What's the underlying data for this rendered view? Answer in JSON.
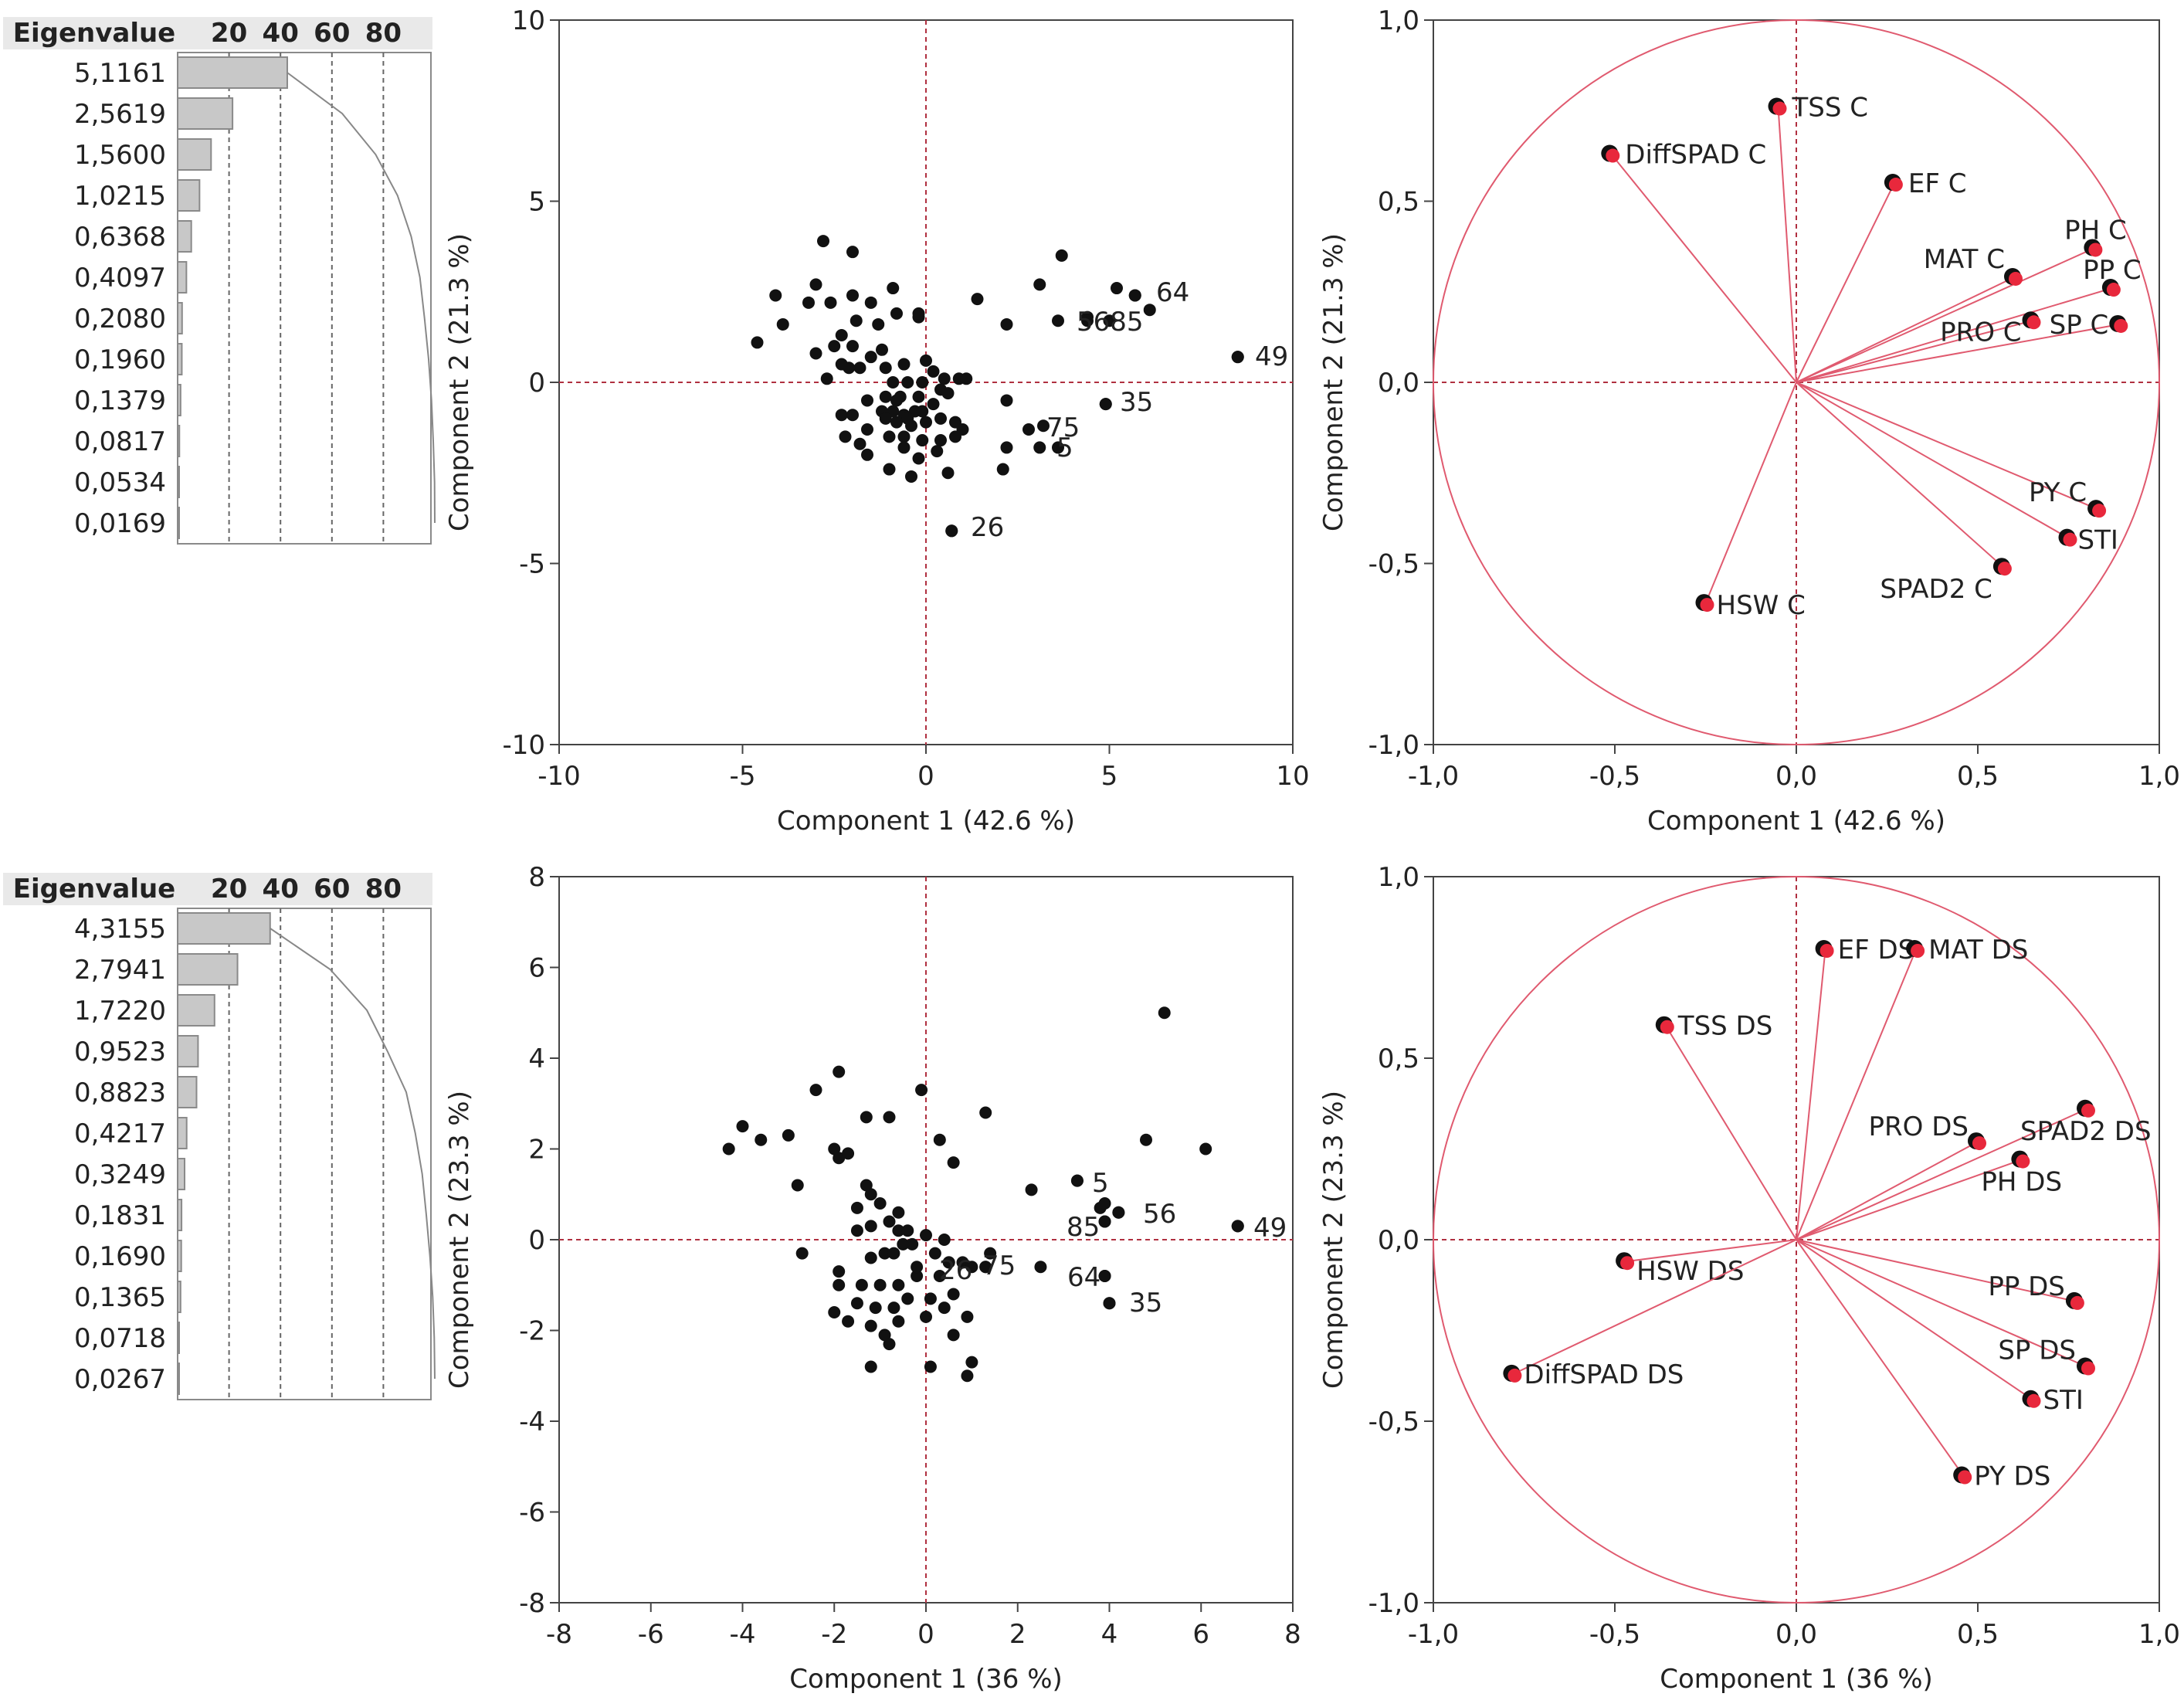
{
  "chart_data": [
    {
      "type": "bar",
      "panel": "eigenvalues-top",
      "title": "Eigenvalue",
      "percent_axis_ticks": [
        "20",
        "40",
        "60",
        "80"
      ],
      "values": [
        5.1161,
        2.5619,
        1.56,
        1.0215,
        0.6368,
        0.4097,
        0.208,
        0.196,
        0.1379,
        0.0817,
        0.0534,
        0.0169
      ],
      "labels": [
        "5,1161",
        "2,5619",
        "1,5600",
        "1,0215",
        "0,6368",
        "0,4097",
        "0,2080",
        "0,1960",
        "0,1379",
        "0,0817",
        "0,0534",
        "0,0169"
      ],
      "cumulative_percent": [
        42.6,
        64.0,
        77.0,
        85.5,
        90.8,
        94.2,
        96.0,
        97.6,
        98.7,
        99.4,
        99.9,
        100.0
      ]
    },
    {
      "type": "scatter",
      "panel": "scores-top",
      "xlabel": "Component 1 (42.6 %)",
      "ylabel": "Component 2  (21.3 %)",
      "xlim": [
        -10,
        10
      ],
      "ylim": [
        -10,
        10
      ],
      "xticks": [
        -10,
        -5,
        0,
        5,
        10
      ],
      "yticks": [
        -10,
        -5,
        0,
        5,
        10
      ],
      "xtick_labels": [
        "-10",
        "-5",
        "0",
        "5",
        "10"
      ],
      "ytick_labels": [
        "-10",
        "-5",
        "0",
        "5",
        "10"
      ],
      "points": [
        [
          -2.8,
          3.9
        ],
        [
          -2.0,
          3.6
        ],
        [
          -3.0,
          2.7
        ],
        [
          -4.1,
          2.4
        ],
        [
          -3.2,
          2.2
        ],
        [
          -2.6,
          2.2
        ],
        [
          -3.9,
          1.6
        ],
        [
          -2.0,
          2.4
        ],
        [
          -1.5,
          2.2
        ],
        [
          -1.3,
          1.6
        ],
        [
          -2.3,
          1.3
        ],
        [
          -1.9,
          1.7
        ],
        [
          -2.5,
          1.0
        ],
        [
          -3.0,
          0.8
        ],
        [
          -2.0,
          1.0
        ],
        [
          -2.3,
          0.5
        ],
        [
          -1.5,
          0.7
        ],
        [
          -1.2,
          0.9
        ],
        [
          -1.8,
          0.4
        ],
        [
          -2.1,
          0.4
        ],
        [
          -1.1,
          0.4
        ],
        [
          -0.9,
          2.6
        ],
        [
          -0.2,
          1.8
        ],
        [
          -0.2,
          1.9
        ],
        [
          -0.8,
          1.9
        ],
        [
          1.4,
          2.3
        ],
        [
          2.2,
          1.6
        ],
        [
          3.1,
          2.7
        ],
        [
          3.7,
          3.5
        ],
        [
          3.6,
          1.7
        ],
        [
          4.4,
          1.8
        ],
        [
          5.2,
          2.6
        ],
        [
          5.7,
          2.4
        ],
        [
          6.1,
          2.0
        ],
        [
          0.0,
          0.6
        ],
        [
          -0.6,
          0.5
        ],
        [
          0.2,
          0.3
        ],
        [
          0.5,
          0.1
        ],
        [
          0.9,
          0.1
        ],
        [
          1.1,
          0.1
        ],
        [
          -0.9,
          0.0
        ],
        [
          -0.5,
          0.0
        ],
        [
          -0.1,
          0.0
        ],
        [
          -1.1,
          -0.4
        ],
        [
          -0.7,
          -0.4
        ],
        [
          -0.2,
          -0.4
        ],
        [
          0.4,
          -0.2
        ],
        [
          0.6,
          -0.3
        ],
        [
          -1.6,
          -0.5
        ],
        [
          -2.3,
          -0.9
        ],
        [
          -2.0,
          -0.9
        ],
        [
          -1.2,
          -0.8
        ],
        [
          -0.9,
          -0.8
        ],
        [
          -0.6,
          -0.9
        ],
        [
          -0.3,
          -0.8
        ],
        [
          -0.1,
          -0.8
        ],
        [
          -0.5,
          -1.0
        ],
        [
          -0.8,
          -1.1
        ],
        [
          -1.1,
          -1.0
        ],
        [
          -0.4,
          -1.2
        ],
        [
          0.0,
          -1.1
        ],
        [
          0.4,
          -1.0
        ],
        [
          0.8,
          -1.1
        ],
        [
          1.0,
          -1.3
        ],
        [
          0.8,
          -1.5
        ],
        [
          0.4,
          -1.6
        ],
        [
          -0.1,
          -1.6
        ],
        [
          -0.6,
          -1.5
        ],
        [
          -1.0,
          -1.5
        ],
        [
          -1.6,
          -1.3
        ],
        [
          -1.8,
          -1.7
        ],
        [
          -2.2,
          -1.5
        ],
        [
          -1.6,
          -2.0
        ],
        [
          -0.6,
          -1.8
        ],
        [
          -0.2,
          -2.1
        ],
        [
          0.3,
          -1.9
        ],
        [
          -1.0,
          -2.4
        ],
        [
          -0.4,
          -2.6
        ],
        [
          0.6,
          -2.5
        ],
        [
          2.2,
          -0.5
        ],
        [
          2.8,
          -1.3
        ],
        [
          2.2,
          -1.8
        ],
        [
          3.1,
          -1.8
        ],
        [
          2.1,
          -2.4
        ],
        [
          4.9,
          -0.6
        ],
        [
          8.5,
          0.7
        ],
        [
          0.7,
          -4.1
        ],
        [
          -4.6,
          1.1
        ],
        [
          -2.7,
          0.1
        ],
        [
          -0.8,
          -0.5
        ],
        [
          0.2,
          -0.6
        ]
      ],
      "labeled_points": [
        {
          "label": "64",
          "x": 5.7,
          "y": 2.4
        },
        {
          "label": "56",
          "x": 4.4,
          "y": 1.7
        },
        {
          "label": "85",
          "x": 5.0,
          "y": 1.7
        },
        {
          "label": "49",
          "x": 8.5,
          "y": 0.7
        },
        {
          "label": "35",
          "x": 4.9,
          "y": -0.6
        },
        {
          "label": "75",
          "x": 3.2,
          "y": -1.2
        },
        {
          "label": "5",
          "x": 3.6,
          "y": -1.8
        },
        {
          "label": "26",
          "x": 0.7,
          "y": -4.1
        }
      ],
      "label_texts": {
        "p49": "49",
        "p64": "64",
        "p5685": "5685",
        "p35": "35",
        "p75": "75",
        "p5": "5",
        "p26": "26"
      }
    },
    {
      "type": "scatter",
      "panel": "loadings-top",
      "xlabel": "Component 1  (42.6 %)",
      "ylabel": "Component 2  (21.3 %)",
      "xlim": [
        -1.0,
        1.0
      ],
      "ylim": [
        -1.0,
        1.0
      ],
      "xticks": [
        -1.0,
        -0.5,
        0.0,
        0.5,
        1.0
      ],
      "yticks": [
        -1.0,
        -0.5,
        0.0,
        0.5,
        1.0
      ],
      "xtick_labels": [
        "-1,0",
        "-0,5",
        "0,0",
        "0,5",
        "1,0"
      ],
      "ytick_labels": [
        "-1,0",
        "-0,5",
        "0,0",
        "0,5",
        "1,0"
      ],
      "vectors": [
        {
          "name": "TSS C",
          "x": -0.05,
          "y": 0.76
        },
        {
          "name": "DiffSPAD C",
          "x": -0.51,
          "y": 0.63
        },
        {
          "name": "EF C",
          "x": 0.27,
          "y": 0.55
        },
        {
          "name": "PH C",
          "x": 0.82,
          "y": 0.37
        },
        {
          "name": "MAT C",
          "x": 0.6,
          "y": 0.29
        },
        {
          "name": "PP C",
          "x": 0.87,
          "y": 0.26
        },
        {
          "name": "PRO C",
          "x": 0.65,
          "y": 0.17
        },
        {
          "name": "SP C",
          "x": 0.89,
          "y": 0.16
        },
        {
          "name": "PY C",
          "x": 0.83,
          "y": -0.35
        },
        {
          "name": "STI",
          "x": 0.75,
          "y": -0.43
        },
        {
          "name": "SPAD2 C",
          "x": 0.57,
          "y": -0.51
        },
        {
          "name": "HSW C",
          "x": -0.25,
          "y": -0.61
        }
      ]
    },
    {
      "type": "bar",
      "panel": "eigenvalues-bottom",
      "title": "Eigenvalue",
      "percent_axis_ticks": [
        "20",
        "40",
        "60",
        "80"
      ],
      "values": [
        4.3155,
        2.7941,
        1.722,
        0.9523,
        0.8823,
        0.4217,
        0.3249,
        0.1831,
        0.169,
        0.1365,
        0.0718,
        0.0267
      ],
      "labels": [
        "4,3155",
        "2,7941",
        "1,7220",
        "0,9523",
        "0,8823",
        "0,4217",
        "0,3249",
        "0,1831",
        "0,1690",
        "0,1365",
        "0,0718",
        "0,0267"
      ],
      "cumulative_percent": [
        36.0,
        59.3,
        73.6,
        81.6,
        88.9,
        92.4,
        95.1,
        96.7,
        98.1,
        99.2,
        99.8,
        100.0
      ]
    },
    {
      "type": "scatter",
      "panel": "scores-bottom",
      "xlabel": "Component 1  (36 %)",
      "ylabel": "Component 2  (23.3 %)",
      "xlim": [
        -8,
        8
      ],
      "ylim": [
        -8,
        8
      ],
      "xticks": [
        -8,
        -6,
        -4,
        -2,
        0,
        2,
        4,
        6,
        8
      ],
      "yticks": [
        -8,
        -6,
        -4,
        -2,
        0,
        2,
        4,
        6,
        8
      ],
      "xtick_labels": [
        "-8",
        "-6",
        "-4",
        "-2",
        "0",
        "2",
        "4",
        "6",
        "8"
      ],
      "ytick_labels": [
        "-8",
        "-6",
        "-4",
        "-2",
        "0",
        "2",
        "4",
        "6",
        "8"
      ],
      "points": [
        [
          -1.9,
          3.7
        ],
        [
          -2.4,
          3.3
        ],
        [
          -4.0,
          2.5
        ],
        [
          -4.3,
          2.0
        ],
        [
          -3.6,
          2.2
        ],
        [
          -2.8,
          1.2
        ],
        [
          -3.0,
          2.3
        ],
        [
          -2.0,
          2.0
        ],
        [
          -1.9,
          1.8
        ],
        [
          -1.7,
          1.9
        ],
        [
          -1.3,
          2.7
        ],
        [
          -0.8,
          2.7
        ],
        [
          -0.1,
          3.3
        ],
        [
          0.3,
          2.2
        ],
        [
          0.6,
          1.7
        ],
        [
          1.3,
          2.8
        ],
        [
          -1.3,
          1.2
        ],
        [
          -1.2,
          1.0
        ],
        [
          -1.0,
          0.8
        ],
        [
          -1.5,
          0.7
        ],
        [
          -0.6,
          0.6
        ],
        [
          -1.2,
          0.3
        ],
        [
          -0.8,
          0.4
        ],
        [
          -0.6,
          0.2
        ],
        [
          -1.5,
          0.2
        ],
        [
          -0.4,
          0.2
        ],
        [
          0.0,
          0.1
        ],
        [
          0.4,
          0.0
        ],
        [
          -0.3,
          -0.1
        ],
        [
          -1.2,
          -0.4
        ],
        [
          -0.9,
          -0.3
        ],
        [
          -0.7,
          -0.3
        ],
        [
          -0.5,
          -0.1
        ],
        [
          0.2,
          -0.3
        ],
        [
          0.8,
          -0.5
        ],
        [
          1.0,
          -0.6
        ],
        [
          1.4,
          -0.3
        ],
        [
          -1.9,
          -0.7
        ],
        [
          -1.4,
          -1.0
        ],
        [
          -1.0,
          -1.0
        ],
        [
          -0.6,
          -1.0
        ],
        [
          -0.2,
          -0.8
        ],
        [
          0.3,
          -0.8
        ],
        [
          0.6,
          -1.2
        ],
        [
          -1.9,
          -1.0
        ],
        [
          -1.5,
          -1.4
        ],
        [
          -1.1,
          -1.5
        ],
        [
          -0.7,
          -1.5
        ],
        [
          -0.4,
          -1.3
        ],
        [
          0.1,
          -1.3
        ],
        [
          0.4,
          -1.5
        ],
        [
          -1.2,
          -1.9
        ],
        [
          -0.6,
          -1.8
        ],
        [
          0.0,
          -1.7
        ],
        [
          0.6,
          -2.1
        ],
        [
          0.9,
          -1.7
        ],
        [
          -2.0,
          -1.6
        ],
        [
          -1.7,
          -1.8
        ],
        [
          -0.9,
          -2.1
        ],
        [
          -0.8,
          -2.3
        ],
        [
          0.1,
          -2.8
        ],
        [
          0.9,
          -3.0
        ],
        [
          1.0,
          -2.7
        ],
        [
          -1.2,
          -2.8
        ],
        [
          -2.7,
          -0.3
        ],
        [
          2.3,
          1.1
        ],
        [
          2.5,
          -0.6
        ],
        [
          3.3,
          1.3
        ],
        [
          3.8,
          0.7
        ],
        [
          3.9,
          0.8
        ],
        [
          3.9,
          0.4
        ],
        [
          4.2,
          0.6
        ],
        [
          3.9,
          -0.8
        ],
        [
          4.0,
          -1.4
        ],
        [
          4.8,
          2.2
        ],
        [
          5.2,
          5.0
        ],
        [
          6.1,
          2.0
        ],
        [
          6.8,
          0.3
        ],
        [
          1.3,
          -0.6
        ],
        [
          0.5,
          -0.5
        ],
        [
          -0.2,
          -0.6
        ]
      ],
      "labeled_points": [
        {
          "label": "5",
          "x": 3.3,
          "y": 1.3
        },
        {
          "label": "56",
          "x": 4.2,
          "y": 0.6
        },
        {
          "label": "85",
          "x": 3.9,
          "y": 0.4
        },
        {
          "label": "49",
          "x": 6.8,
          "y": 0.3
        },
        {
          "label": "75",
          "x": 1.3,
          "y": -0.6
        },
        {
          "label": "26",
          "x": 0.5,
          "y": -0.5
        },
        {
          "label": "64",
          "x": 3.9,
          "y": -0.8
        },
        {
          "label": "35",
          "x": 4.0,
          "y": -1.4
        }
      ],
      "label_texts": {
        "p5": "5",
        "p56": "56",
        "p85": "85",
        "p49": "49",
        "p75": "75",
        "p26": "26",
        "p64": "64",
        "p35": "35"
      }
    },
    {
      "type": "scatter",
      "panel": "loadings-bottom",
      "xlabel": "Component 1  (36 %)",
      "ylabel": "Component 2  (23.3 %)",
      "xlim": [
        -1.0,
        1.0
      ],
      "ylim": [
        -1.0,
        1.0
      ],
      "xticks": [
        -1.0,
        -0.5,
        0.0,
        0.5,
        1.0
      ],
      "yticks": [
        -1.0,
        -0.5,
        0.0,
        0.5,
        1.0
      ],
      "xtick_labels": [
        "-1,0",
        "-0,5",
        "0,0",
        "0,5",
        "1,0"
      ],
      "ytick_labels": [
        "-1,0",
        "-0,5",
        "0,0",
        "0,5",
        "1,0"
      ],
      "vectors": [
        {
          "name": "EF DS",
          "x": 0.08,
          "y": 0.8
        },
        {
          "name": "MAT DS",
          "x": 0.33,
          "y": 0.8
        },
        {
          "name": "TSS DS",
          "x": -0.36,
          "y": 0.59
        },
        {
          "name": "SPAD2 DS",
          "x": 0.8,
          "y": 0.36
        },
        {
          "name": "PRO DS",
          "x": 0.5,
          "y": 0.27
        },
        {
          "name": "PH DS",
          "x": 0.62,
          "y": 0.22
        },
        {
          "name": "HSW DS",
          "x": -0.47,
          "y": -0.06
        },
        {
          "name": "PP DS",
          "x": 0.77,
          "y": -0.17
        },
        {
          "name": "SP DS",
          "x": 0.8,
          "y": -0.35
        },
        {
          "name": "STI",
          "x": 0.65,
          "y": -0.44
        },
        {
          "name": "DiffSPAD DS",
          "x": -0.78,
          "y": -0.37
        },
        {
          "name": "PY DS",
          "x": 0.46,
          "y": -0.65
        }
      ]
    }
  ]
}
